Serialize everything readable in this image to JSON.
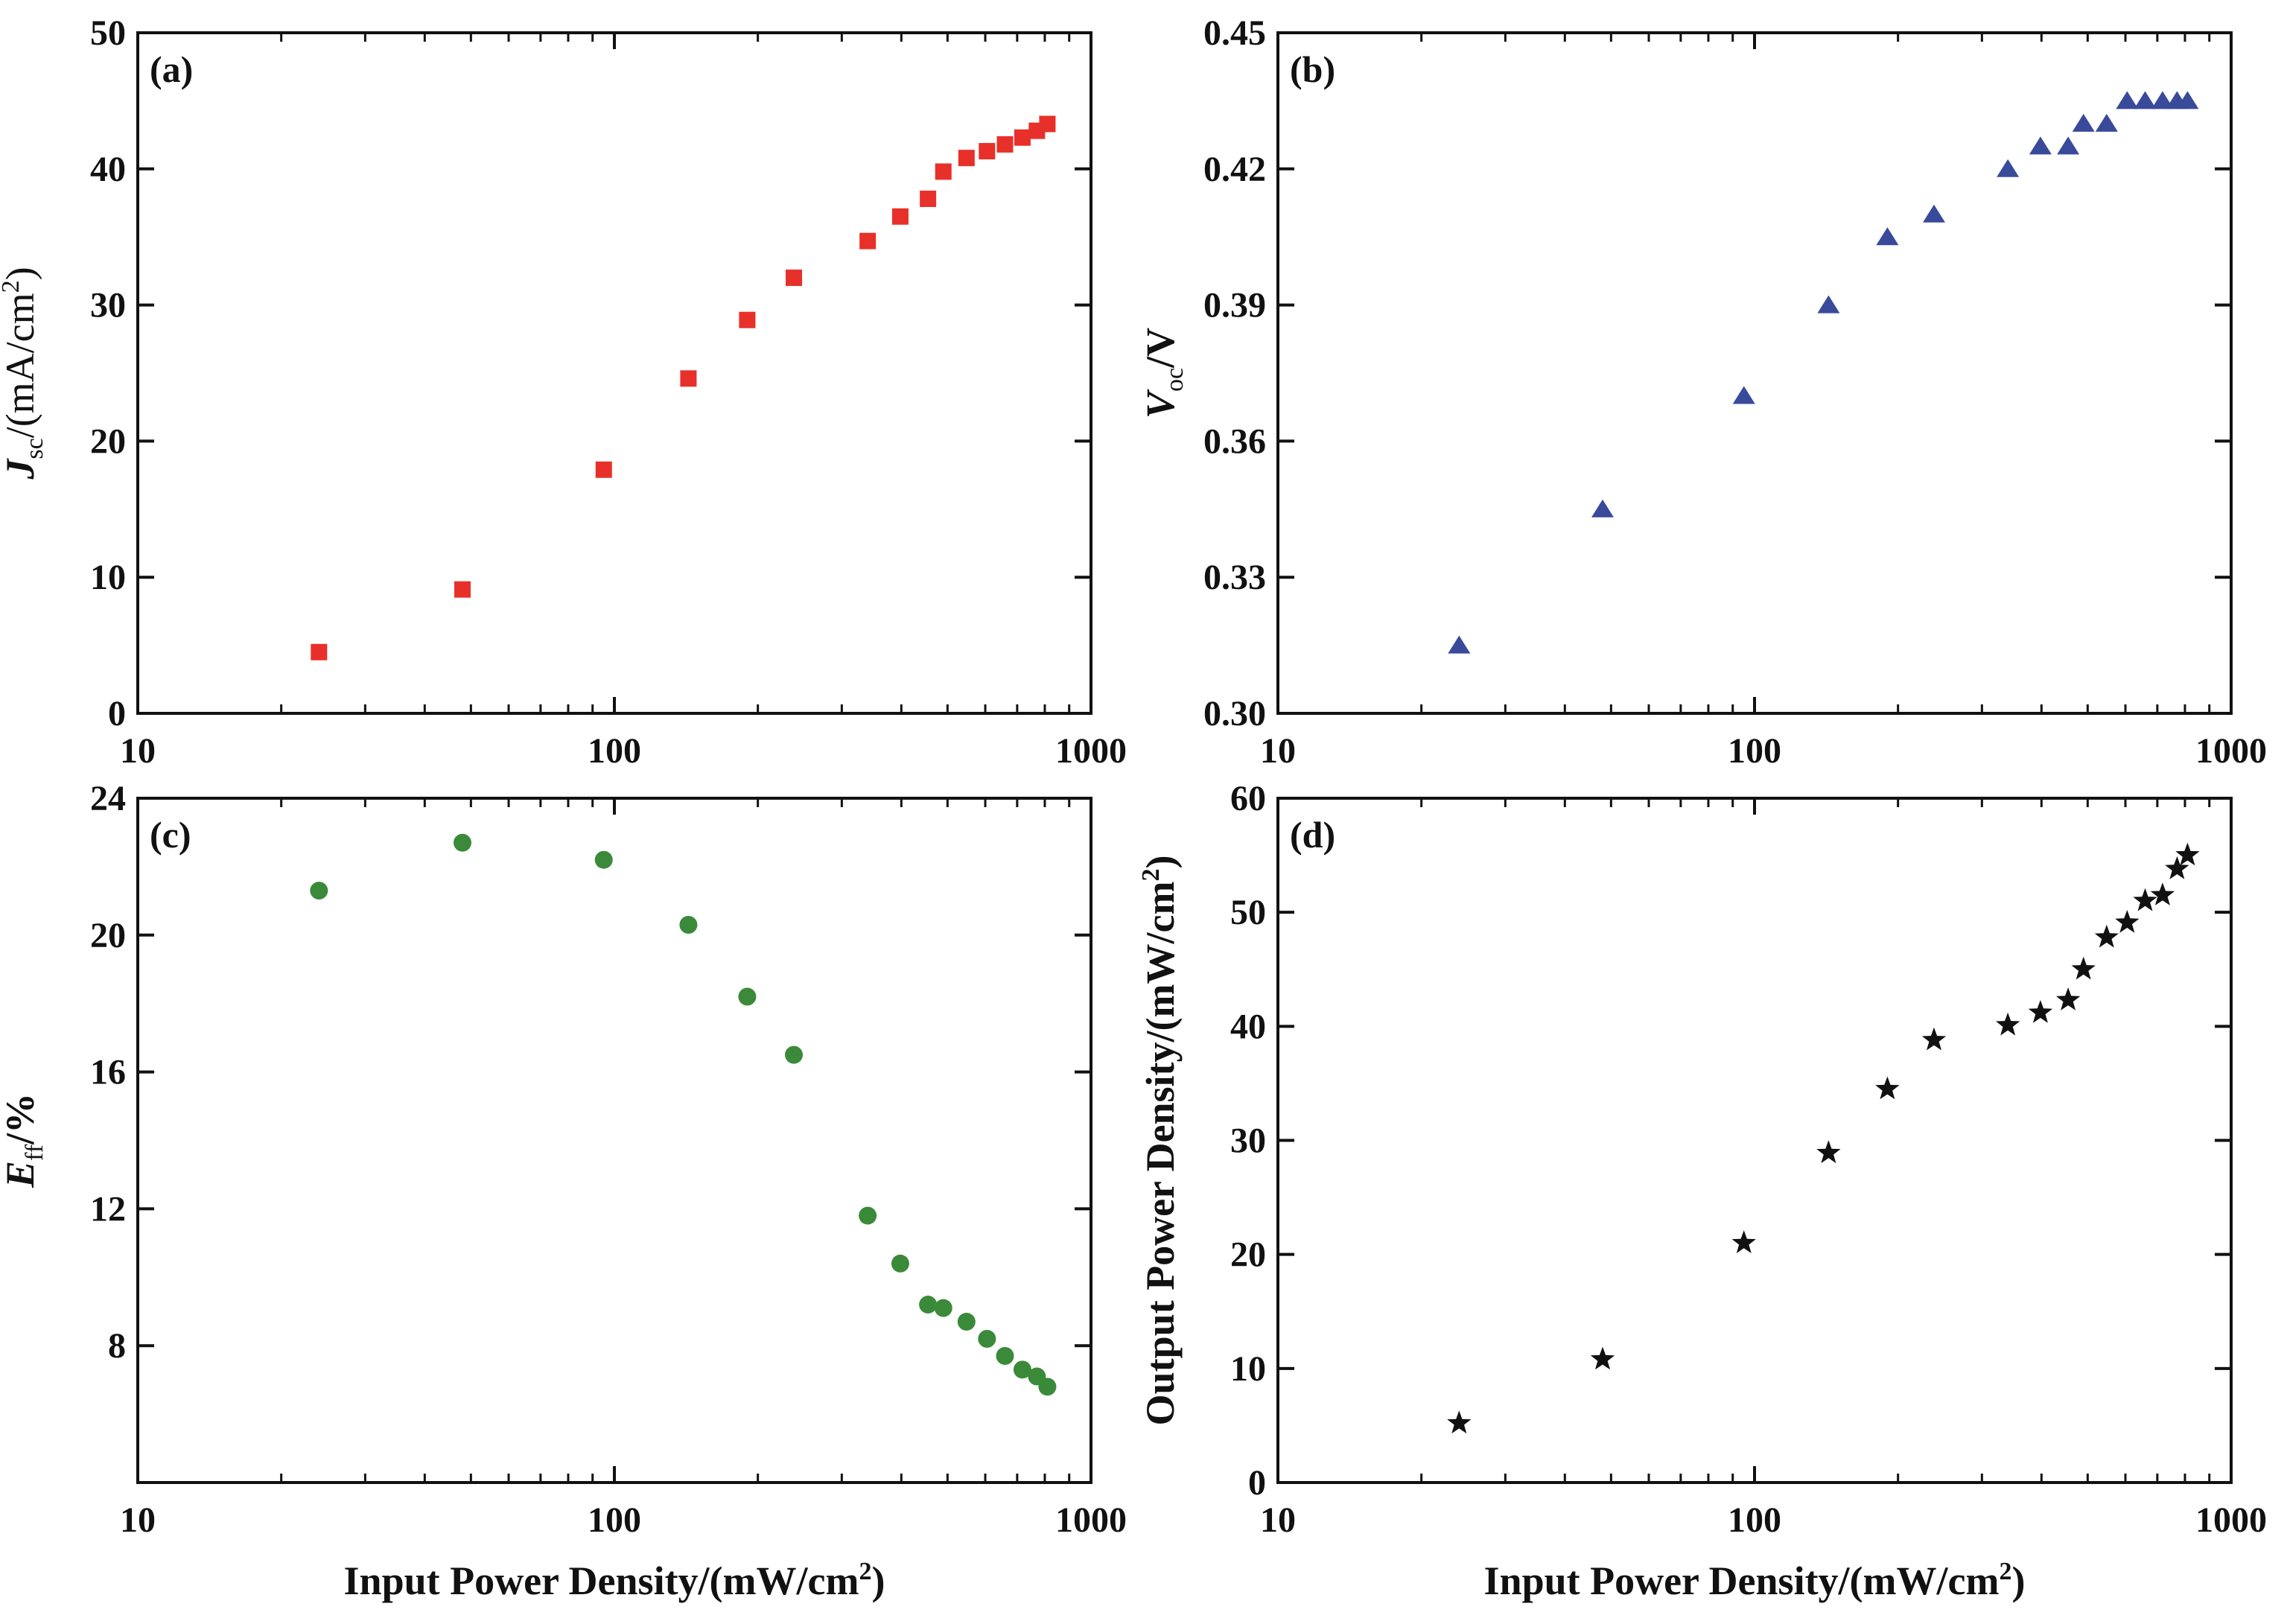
{
  "colors": {
    "a": "#e8302a",
    "b": "#3a4a9a",
    "c": "#3a8a3a",
    "d": "#111111"
  },
  "chart_data": [
    {
      "panel": "a",
      "tag": "(a)",
      "type": "scatter",
      "marker": "square-icon",
      "xscale": "log",
      "xlim": [
        10,
        1000
      ],
      "ylim": [
        0,
        50
      ],
      "xticks": [
        "10",
        "100",
        "1000"
      ],
      "yticks": [
        "0",
        "10",
        "20",
        "30",
        "40",
        "50"
      ],
      "xlabel": "",
      "ylabel": {
        "main": "J",
        "sub": "sc",
        "rest": "/(mA/cm",
        "sup": "2",
        "end": ")"
      },
      "x": [
        24,
        48,
        95,
        143,
        190,
        238,
        340,
        398,
        455,
        490,
        548,
        605,
        660,
        718,
        770,
        810
      ],
      "y": [
        4.5,
        9.1,
        17.9,
        24.6,
        28.9,
        32.0,
        34.7,
        36.5,
        37.8,
        39.8,
        40.8,
        41.3,
        41.8,
        42.3,
        42.8,
        43.3
      ]
    },
    {
      "panel": "b",
      "tag": "(b)",
      "type": "scatter",
      "marker": "triangle-icon",
      "xscale": "log",
      "xlim": [
        10,
        1000
      ],
      "ylim": [
        0.3,
        0.45
      ],
      "xticks": [
        "10",
        "100",
        "1000"
      ],
      "yticks": [
        "0.30",
        "0.33",
        "0.36",
        "0.39",
        "0.42",
        "0.45"
      ],
      "xlabel": "",
      "ylabel": {
        "main": "V",
        "sub": "oc",
        "rest": "/V",
        "sup": "",
        "end": ""
      },
      "x": [
        24,
        48,
        95,
        143,
        190,
        238,
        340,
        398,
        455,
        490,
        548,
        605,
        660,
        718,
        770,
        810
      ],
      "y": [
        0.315,
        0.345,
        0.37,
        0.39,
        0.405,
        0.41,
        0.42,
        0.425,
        0.425,
        0.43,
        0.43,
        0.435,
        0.435,
        0.435,
        0.435,
        0.435
      ]
    },
    {
      "panel": "c",
      "tag": "(c)",
      "type": "scatter",
      "marker": "circle-icon",
      "xscale": "log",
      "xlim": [
        10,
        1000
      ],
      "ylim": [
        4,
        24
      ],
      "xticks": [
        "10",
        "100",
        "1000"
      ],
      "yticks": [
        "8",
        "12",
        "16",
        "20",
        "24"
      ],
      "xlabel": {
        "main": "Input Power Density/(mW/cm",
        "sup": "2",
        "end": ")"
      },
      "ylabel": {
        "main": "E",
        "sub": "ff",
        "rest": "/%",
        "sup": "",
        "end": ""
      },
      "x": [
        24,
        48,
        95,
        143,
        190,
        238,
        340,
        398,
        455,
        490,
        548,
        605,
        660,
        718,
        770,
        810
      ],
      "y": [
        21.3,
        22.7,
        22.2,
        20.3,
        18.2,
        16.5,
        11.8,
        10.4,
        9.2,
        9.1,
        8.7,
        8.2,
        7.7,
        7.3,
        7.1,
        6.8
      ]
    },
    {
      "panel": "d",
      "tag": "(d)",
      "type": "scatter",
      "marker": "star-icon",
      "xscale": "log",
      "xlim": [
        10,
        1000
      ],
      "ylim": [
        0,
        60
      ],
      "xticks": [
        "10",
        "100",
        "1000"
      ],
      "yticks": [
        "0",
        "10",
        "20",
        "30",
        "40",
        "50",
        "60"
      ],
      "xlabel": {
        "main": "Input Power Density/(mW/cm",
        "sup": "2",
        "end": ")"
      },
      "ylabel": {
        "main": "Output Power Density/(mW/cm",
        "sub": "",
        "rest": "",
        "sup": "2",
        "end": ")"
      },
      "x": [
        24,
        48,
        95,
        143,
        190,
        238,
        340,
        398,
        455,
        490,
        548,
        605,
        660,
        718,
        770,
        810
      ],
      "y": [
        5.2,
        10.8,
        21.0,
        28.9,
        34.5,
        38.8,
        40.1,
        41.2,
        42.3,
        45.0,
        47.8,
        49.1,
        51.0,
        51.5,
        53.8,
        55.0
      ]
    }
  ]
}
